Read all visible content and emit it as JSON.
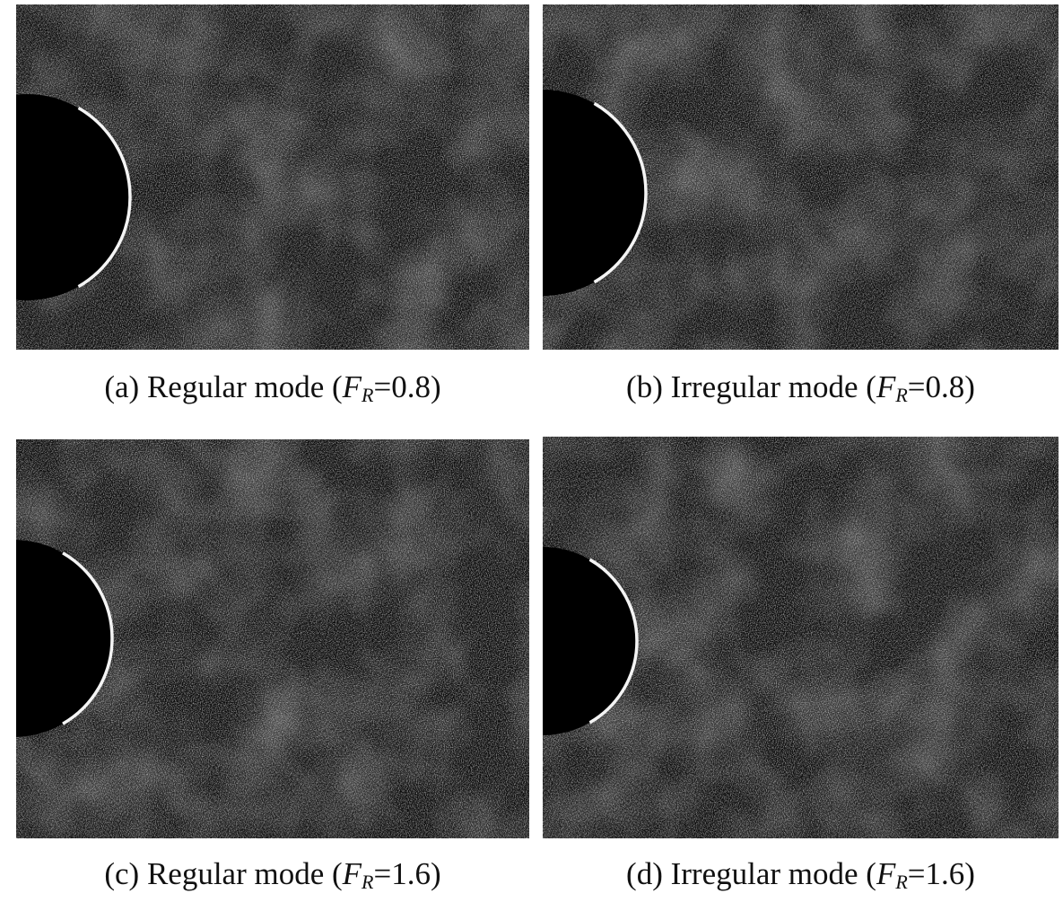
{
  "figure": {
    "panels": [
      {
        "pre": "(a) Regular mode (",
        "var": "F",
        "sub": "R",
        "post": "=0.8)"
      },
      {
        "pre": "(b) Irregular mode (",
        "var": "F",
        "sub": "R",
        "post": "=0.8)"
      },
      {
        "pre": "(c) Regular mode (",
        "var": "F",
        "sub": "R",
        "post": "=1.6)"
      },
      {
        "pre": "(d) Irregular mode (",
        "var": "F",
        "sub": "R",
        "post": "=1.6)"
      }
    ]
  }
}
